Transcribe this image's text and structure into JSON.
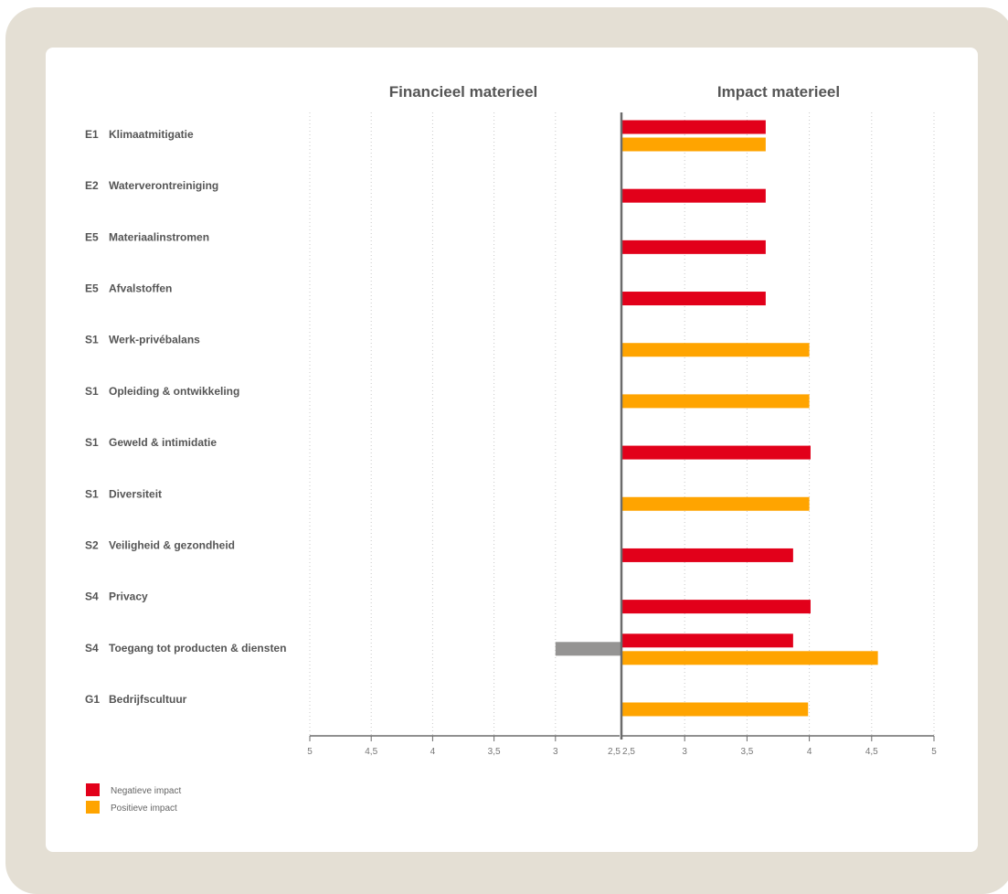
{
  "chart_data": {
    "type": "bar",
    "colors": {
      "negative": "#e2001a",
      "positive": "#ffa400",
      "financial": "#959493",
      "axis": "#6b6b6b",
      "grid": "#c8c8c8"
    },
    "panels": [
      {
        "title": "Financieel materieel",
        "xlim": [
          2.5,
          5
        ],
        "direction": "reversed",
        "tick_labels": [
          "5",
          "4,5",
          "4",
          "3,5",
          "3",
          "2,5"
        ]
      },
      {
        "title": "Impact materieel",
        "xlim": [
          2.5,
          5
        ],
        "direction": "normal",
        "tick_labels": [
          "2,5",
          "3",
          "3,5",
          "4",
          "4,5",
          "5"
        ]
      }
    ],
    "categories": [
      {
        "code": "E1",
        "label": "Klimaatmitigatie"
      },
      {
        "code": "E2",
        "label": "Waterverontreiniging"
      },
      {
        "code": "E5",
        "label": "Materiaalinstromen"
      },
      {
        "code": "E5",
        "label": "Afvalstoffen"
      },
      {
        "code": "S1",
        "label": "Werk-privébalans"
      },
      {
        "code": "S1",
        "label": "Opleiding & ontwikkeling"
      },
      {
        "code": "S1",
        "label": "Geweld & intimidatie"
      },
      {
        "code": "S1",
        "label": "Diversiteit"
      },
      {
        "code": "S2",
        "label": "Veiligheid & gezondheid"
      },
      {
        "code": "S4",
        "label": "Privacy"
      },
      {
        "code": "S4",
        "label": "Toegang tot producten & diensten"
      },
      {
        "code": "G1",
        "label": "Bedrijfscultuur"
      }
    ],
    "series": [
      {
        "name": "Negatieve impact",
        "panel": "impact",
        "values": [
          3.65,
          3.65,
          3.65,
          3.65,
          null,
          null,
          4.01,
          null,
          3.87,
          4.01,
          3.87,
          null
        ]
      },
      {
        "name": "Positieve impact",
        "panel": "impact",
        "values": [
          3.65,
          null,
          null,
          null,
          4.0,
          4.0,
          null,
          4.0,
          null,
          null,
          4.55,
          3.99
        ]
      },
      {
        "panel": "financial",
        "values": [
          null,
          null,
          null,
          null,
          null,
          null,
          null,
          null,
          null,
          null,
          3.0,
          null
        ]
      }
    ],
    "legend": [
      {
        "label": "Negatieve impact",
        "color": "#e2001a"
      },
      {
        "label": "Positieve impact",
        "color": "#ffa400"
      }
    ],
    "legend_position": "bottom-left",
    "grid": true
  }
}
